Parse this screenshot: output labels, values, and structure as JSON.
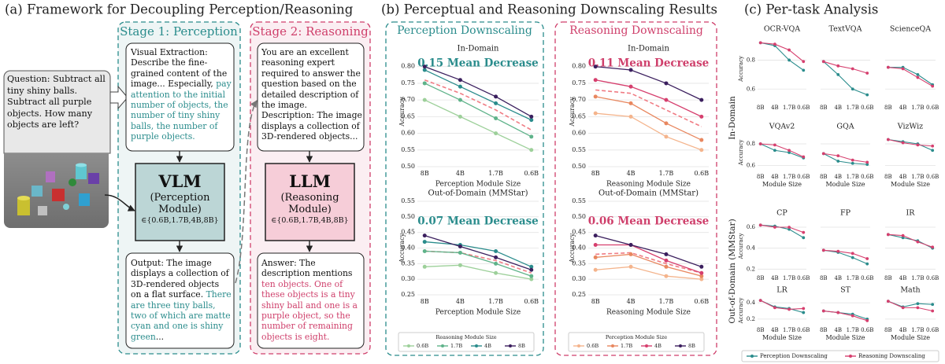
{
  "panel_a": {
    "title": "(a) Framework for Decoupling Perception/Reasoning",
    "stage1": "Stage 1: Perception",
    "stage2": "Stage 2: Reasoning",
    "question": "Question: Subtract all tiny shiny balls. Subtract all purple objects. How many objects are left?",
    "visual_extraction": {
      "label": "Visual Extraction:",
      "text": "Describe the fine-grained content of the image... Especially,",
      "highlight": "pay attention to the initial number of objects, the number of tiny shiny balls, the number of purple objects."
    },
    "vlm": {
      "name": "VLM",
      "role": "(Perception Module)",
      "sizes": "∈{0.6B,1.7B,4B,8B}"
    },
    "output": {
      "text": "Output: The image displays a collection of 3D-rendered objects on a flat surface.",
      "highlight": "There are three tiny balls, two of which are matte cyan and one is shiny green",
      "tail": "..."
    },
    "prompt": "You are an excellent reasoning expert required to answer the question based on the detailed description of the image. Description: The image displays a collection of 3D-rendered objects...",
    "llm": {
      "name": "LLM",
      "role": "(Reasoning Module)",
      "sizes": "∈{0.6B,1.7B,4B,8B}"
    },
    "answer": {
      "text": "Answer: The description mentions",
      "highlight": "ten objects. One of these objects is a tiny shiny ball and one is a purple object, so the number of remaining objects is eight."
    }
  },
  "panel_b": {
    "title": "(b) Perceptual and Reasoning Downscaling Results",
    "groups": [
      "Perception Downscaling",
      "Reasoning Downscaling"
    ]
  },
  "panel_c": {
    "title": "(c) Per-task Analysis",
    "row_labels": [
      "In-Domain",
      "Out-of-Domain (MMStar)"
    ]
  },
  "chart_data": [
    {
      "type": "line",
      "title": "In-Domain",
      "annotation": "0.15 Mean Decrease",
      "annotation_color": "#2a8c8c",
      "xlabel": "Perception Module Size",
      "ylabel": "Accuracy",
      "categories": [
        "8B",
        "4B",
        "1.7B",
        "0.6B"
      ],
      "series": [
        {
          "name": "0.6B",
          "color": "#9dd09a",
          "values": [
            0.7,
            0.65,
            0.6,
            0.55
          ]
        },
        {
          "name": "1.7B",
          "color": "#5fb38a",
          "values": [
            0.75,
            0.7,
            0.645,
            0.59
          ]
        },
        {
          "name": "4B",
          "color": "#2a8c8c",
          "values": [
            0.79,
            0.74,
            0.69,
            0.64
          ]
        },
        {
          "name": "8B",
          "color": "#3b1f5e",
          "values": [
            0.8,
            0.76,
            0.71,
            0.65
          ]
        }
      ],
      "mean_values": [
        0.76,
        0.72,
        0.67,
        0.61
      ],
      "mean_color": "#f07c84",
      "ylim": [
        0.5,
        0.83
      ],
      "yticks": [
        {
          "value": 0.5,
          "label": "0.50"
        },
        0.55,
        {
          "value": 0.6,
          "label": "0.60"
        },
        0.65,
        {
          "value": 0.7,
          "label": "0.70"
        },
        0.75,
        {
          "value": 0.8,
          "label": "0.80"
        }
      ],
      "grid": true
    },
    {
      "type": "line",
      "title": "In-Domain",
      "annotation": "0.11 Mean Decrease",
      "annotation_color": "#cf3f6b",
      "xlabel": "Reasoning Module Size",
      "ylabel": "Accuracy",
      "categories": [
        "8B",
        "4B",
        "1.7B",
        "0.6B"
      ],
      "series": [
        {
          "name": "0.6B",
          "color": "#f4b48c",
          "values": [
            0.66,
            0.65,
            0.59,
            0.55
          ]
        },
        {
          "name": "1.7B",
          "color": "#e8875f",
          "values": [
            0.71,
            0.69,
            0.63,
            0.58
          ]
        },
        {
          "name": "4B",
          "color": "#d63f6e",
          "values": [
            0.76,
            0.74,
            0.7,
            0.65
          ]
        },
        {
          "name": "8B",
          "color": "#3b1f5e",
          "values": [
            0.8,
            0.79,
            0.75,
            0.7
          ]
        }
      ],
      "mean_values": [
        0.73,
        0.72,
        0.67,
        0.62
      ],
      "mean_color": "#f07c84",
      "ylim": [
        0.5,
        0.83
      ],
      "yticks": [
        {
          "value": 0.5,
          "label": "0.50"
        },
        0.55,
        {
          "value": 0.6,
          "label": "0.60"
        },
        0.65,
        {
          "value": 0.7,
          "label": "0.70"
        },
        0.75,
        {
          "value": 0.8,
          "label": "0.80"
        }
      ],
      "grid": true
    },
    {
      "type": "line",
      "title": "Out-of-Domain (MMStar)",
      "annotation": "0.07 Mean Decrease",
      "annotation_color": "#2a8c8c",
      "xlabel": "Perception Module Size",
      "ylabel": "Accuracy",
      "legend_title": "Reasoning Module Size",
      "categories": [
        "8B",
        "4B",
        "1.7B",
        "0.6B"
      ],
      "series": [
        {
          "name": "0.6B",
          "color": "#9dd09a",
          "values": [
            0.34,
            0.345,
            0.32,
            0.3
          ]
        },
        {
          "name": "1.7B",
          "color": "#5fb38a",
          "values": [
            0.39,
            0.385,
            0.35,
            0.31
          ]
        },
        {
          "name": "4B",
          "color": "#2a8c8c",
          "values": [
            0.42,
            0.41,
            0.39,
            0.34
          ]
        },
        {
          "name": "8B",
          "color": "#3b1f5e",
          "values": [
            0.44,
            0.405,
            0.37,
            0.33
          ]
        }
      ],
      "mean_values": [
        0.39,
        0.385,
        0.36,
        0.32
      ],
      "mean_color": "#f07c84",
      "ylim": [
        0.25,
        0.55
      ],
      "yticks": [
        0.25,
        {
          "value": 0.3,
          "label": "0.30"
        },
        0.35,
        {
          "value": 0.4,
          "label": "0.40"
        },
        0.45,
        {
          "value": 0.5,
          "label": "0.50"
        },
        0.55
      ],
      "grid": true
    },
    {
      "type": "line",
      "title": "Out-of-Domain (MMStar)",
      "annotation": "0.06 Mean Decrease",
      "annotation_color": "#cf3f6b",
      "xlabel": "Reasoning Module Size",
      "ylabel": "Accuracy",
      "legend_title": "Perception Module Size",
      "categories": [
        "8B",
        "4B",
        "1.7B",
        "0.6B"
      ],
      "series": [
        {
          "name": "0.6B",
          "color": "#f4b48c",
          "values": [
            0.33,
            0.34,
            0.31,
            0.3
          ]
        },
        {
          "name": "1.7B",
          "color": "#e8875f",
          "values": [
            0.37,
            0.38,
            0.34,
            0.31
          ]
        },
        {
          "name": "4B",
          "color": "#d63f6e",
          "values": [
            0.41,
            0.41,
            0.36,
            0.32
          ]
        },
        {
          "name": "8B",
          "color": "#3b1f5e",
          "values": [
            0.44,
            0.41,
            0.38,
            0.34
          ]
        }
      ],
      "mean_values": [
        0.38,
        0.385,
        0.35,
        0.32
      ],
      "mean_color": "#f07c84",
      "ylim": [
        0.25,
        0.55
      ],
      "yticks": [
        0.25,
        {
          "value": 0.3,
          "label": "0.30"
        },
        0.35,
        {
          "value": 0.4,
          "label": "0.40"
        },
        0.45,
        {
          "value": 0.5,
          "label": "0.50"
        },
        0.55
      ],
      "grid": true
    },
    {
      "type": "line",
      "title": "OCR-VQA",
      "ylabel": "Accuracy",
      "categories": [
        "8B",
        "4B",
        "1.7B",
        "0.6B"
      ],
      "series": [
        {
          "name": "Perception Downscaling",
          "color": "#2a8c8c",
          "values": [
            0.92,
            0.9,
            0.8,
            0.73
          ]
        },
        {
          "name": "Reasoning Downscaling",
          "color": "#d63f6e",
          "values": [
            0.92,
            0.91,
            0.87,
            0.79
          ]
        }
      ],
      "ylim": [
        0.52,
        0.96
      ],
      "yticks": [
        0.6,
        0.8
      ],
      "grid": true
    },
    {
      "type": "line",
      "title": "TextVQA",
      "categories": [
        "8B",
        "4B",
        "1.7B",
        "0.6B"
      ],
      "series": [
        {
          "name": "Perception Downscaling",
          "color": "#2a8c8c",
          "values": [
            0.79,
            0.7,
            0.6,
            0.56
          ]
        },
        {
          "name": "Reasoning Downscaling",
          "color": "#d63f6e",
          "values": [
            0.79,
            0.76,
            0.74,
            0.71
          ]
        }
      ],
      "ylim": [
        0.52,
        0.96
      ],
      "yticks": [
        0.6,
        0.8
      ],
      "grid": true
    },
    {
      "type": "line",
      "title": "ScienceQA",
      "categories": [
        "8B",
        "4B",
        "1.7B",
        "0.6B"
      ],
      "series": [
        {
          "name": "Perception Downscaling",
          "color": "#2a8c8c",
          "values": [
            0.75,
            0.75,
            0.7,
            0.63
          ]
        },
        {
          "name": "Reasoning Downscaling",
          "color": "#d63f6e",
          "values": [
            0.75,
            0.74,
            0.68,
            0.62
          ]
        }
      ],
      "ylim": [
        0.52,
        0.96
      ],
      "yticks": [
        0.6,
        0.8
      ],
      "grid": true
    },
    {
      "type": "line",
      "title": "VQAv2",
      "ylabel": "Accuracy",
      "xlabel": "Module Size",
      "categories": [
        "8B",
        "4B",
        "1.7B",
        "0.6B"
      ],
      "series": [
        {
          "name": "Perception Downscaling",
          "color": "#2a8c8c",
          "values": [
            0.8,
            0.74,
            0.72,
            0.67
          ]
        },
        {
          "name": "Reasoning Downscaling",
          "color": "#d63f6e",
          "values": [
            0.8,
            0.79,
            0.74,
            0.68
          ]
        }
      ],
      "ylim": [
        0.56,
        0.88
      ],
      "yticks": [
        0.6,
        0.8
      ],
      "grid": true
    },
    {
      "type": "line",
      "title": "GQA",
      "xlabel": "Module Size",
      "categories": [
        "8B",
        "4B",
        "1.7B",
        "0.6B"
      ],
      "series": [
        {
          "name": "Perception Downscaling",
          "color": "#2a8c8c",
          "values": [
            0.71,
            0.64,
            0.62,
            0.61
          ]
        },
        {
          "name": "Reasoning Downscaling",
          "color": "#d63f6e",
          "values": [
            0.71,
            0.69,
            0.65,
            0.63
          ]
        }
      ],
      "ylim": [
        0.56,
        0.88
      ],
      "yticks": [
        0.6,
        0.8
      ],
      "grid": true
    },
    {
      "type": "line",
      "title": "VizWiz",
      "xlabel": "Module Size",
      "categories": [
        "8B",
        "4B",
        "1.7B",
        "0.6B"
      ],
      "series": [
        {
          "name": "Perception Downscaling",
          "color": "#2a8c8c",
          "values": [
            0.84,
            0.82,
            0.8,
            0.74
          ]
        },
        {
          "name": "Reasoning Downscaling",
          "color": "#d63f6e",
          "values": [
            0.84,
            0.81,
            0.79,
            0.78
          ]
        }
      ],
      "ylim": [
        0.56,
        0.88
      ],
      "yticks": [
        0.6,
        0.8
      ],
      "grid": true
    },
    {
      "type": "line",
      "title": "CP",
      "ylabel": "Accuracy",
      "categories": [
        "8B",
        "4B",
        "1.7B",
        "0.6B"
      ],
      "series": [
        {
          "name": "Perception Downscaling",
          "color": "#2a8c8c",
          "values": [
            0.62,
            0.61,
            0.58,
            0.5
          ]
        },
        {
          "name": "Reasoning Downscaling",
          "color": "#d63f6e",
          "values": [
            0.62,
            0.6,
            0.6,
            0.55
          ]
        }
      ],
      "ylim": [
        0.18,
        0.66
      ],
      "yticks": [
        0.2,
        0.4,
        0.6
      ],
      "grid": true
    },
    {
      "type": "line",
      "title": "FP",
      "categories": [
        "8B",
        "4B",
        "1.7B",
        "0.6B"
      ],
      "series": [
        {
          "name": "Perception Downscaling",
          "color": "#2a8c8c",
          "values": [
            0.38,
            0.36,
            0.31,
            0.25
          ]
        },
        {
          "name": "Reasoning Downscaling",
          "color": "#d63f6e",
          "values": [
            0.38,
            0.37,
            0.35,
            0.3
          ]
        }
      ],
      "ylim": [
        0.18,
        0.66
      ],
      "yticks": [
        0.2,
        0.4,
        0.6
      ],
      "grid": true
    },
    {
      "type": "line",
      "title": "IR",
      "categories": [
        "8B",
        "4B",
        "1.7B",
        "0.6B"
      ],
      "series": [
        {
          "name": "Perception Downscaling",
          "color": "#2a8c8c",
          "values": [
            0.53,
            0.5,
            0.47,
            0.4
          ]
        },
        {
          "name": "Reasoning Downscaling",
          "color": "#d63f6e",
          "values": [
            0.53,
            0.52,
            0.46,
            0.41
          ]
        }
      ],
      "ylim": [
        0.18,
        0.66
      ],
      "yticks": [
        0.2,
        0.4,
        0.6
      ],
      "grid": true
    },
    {
      "type": "line",
      "title": "LR",
      "ylabel": "Accuracy",
      "xlabel": "Module Size",
      "categories": [
        "8B",
        "4B",
        "1.7B",
        "0.6B"
      ],
      "series": [
        {
          "name": "Perception Downscaling",
          "color": "#2a8c8c",
          "values": [
            0.43,
            0.35,
            0.33,
            0.28
          ]
        },
        {
          "name": "Reasoning Downscaling",
          "color": "#d63f6e",
          "values": [
            0.43,
            0.34,
            0.32,
            0.33
          ]
        }
      ],
      "ylim": [
        0.15,
        0.46
      ],
      "yticks": [
        0.2,
        0.4
      ],
      "grid": true
    },
    {
      "type": "line",
      "title": "ST",
      "xlabel": "Module Size",
      "categories": [
        "8B",
        "4B",
        "1.7B",
        "0.6B"
      ],
      "series": [
        {
          "name": "Perception Downscaling",
          "color": "#2a8c8c",
          "values": [
            0.3,
            0.28,
            0.26,
            0.2
          ]
        },
        {
          "name": "Reasoning Downscaling",
          "color": "#d63f6e",
          "values": [
            0.3,
            0.28,
            0.24,
            0.18
          ]
        }
      ],
      "ylim": [
        0.15,
        0.46
      ],
      "yticks": [
        0.2,
        0.4
      ],
      "grid": true
    },
    {
      "type": "line",
      "title": "Math",
      "xlabel": "Module Size",
      "categories": [
        "8B",
        "4B",
        "1.7B",
        "0.6B"
      ],
      "series": [
        {
          "name": "Perception Downscaling",
          "color": "#2a8c8c",
          "values": [
            0.42,
            0.35,
            0.39,
            0.38
          ]
        },
        {
          "name": "Reasoning Downscaling",
          "color": "#d63f6e",
          "values": [
            0.42,
            0.34,
            0.34,
            0.3
          ]
        }
      ],
      "ylim": [
        0.15,
        0.46
      ],
      "yticks": [
        0.2,
        0.4
      ],
      "grid": true
    }
  ]
}
